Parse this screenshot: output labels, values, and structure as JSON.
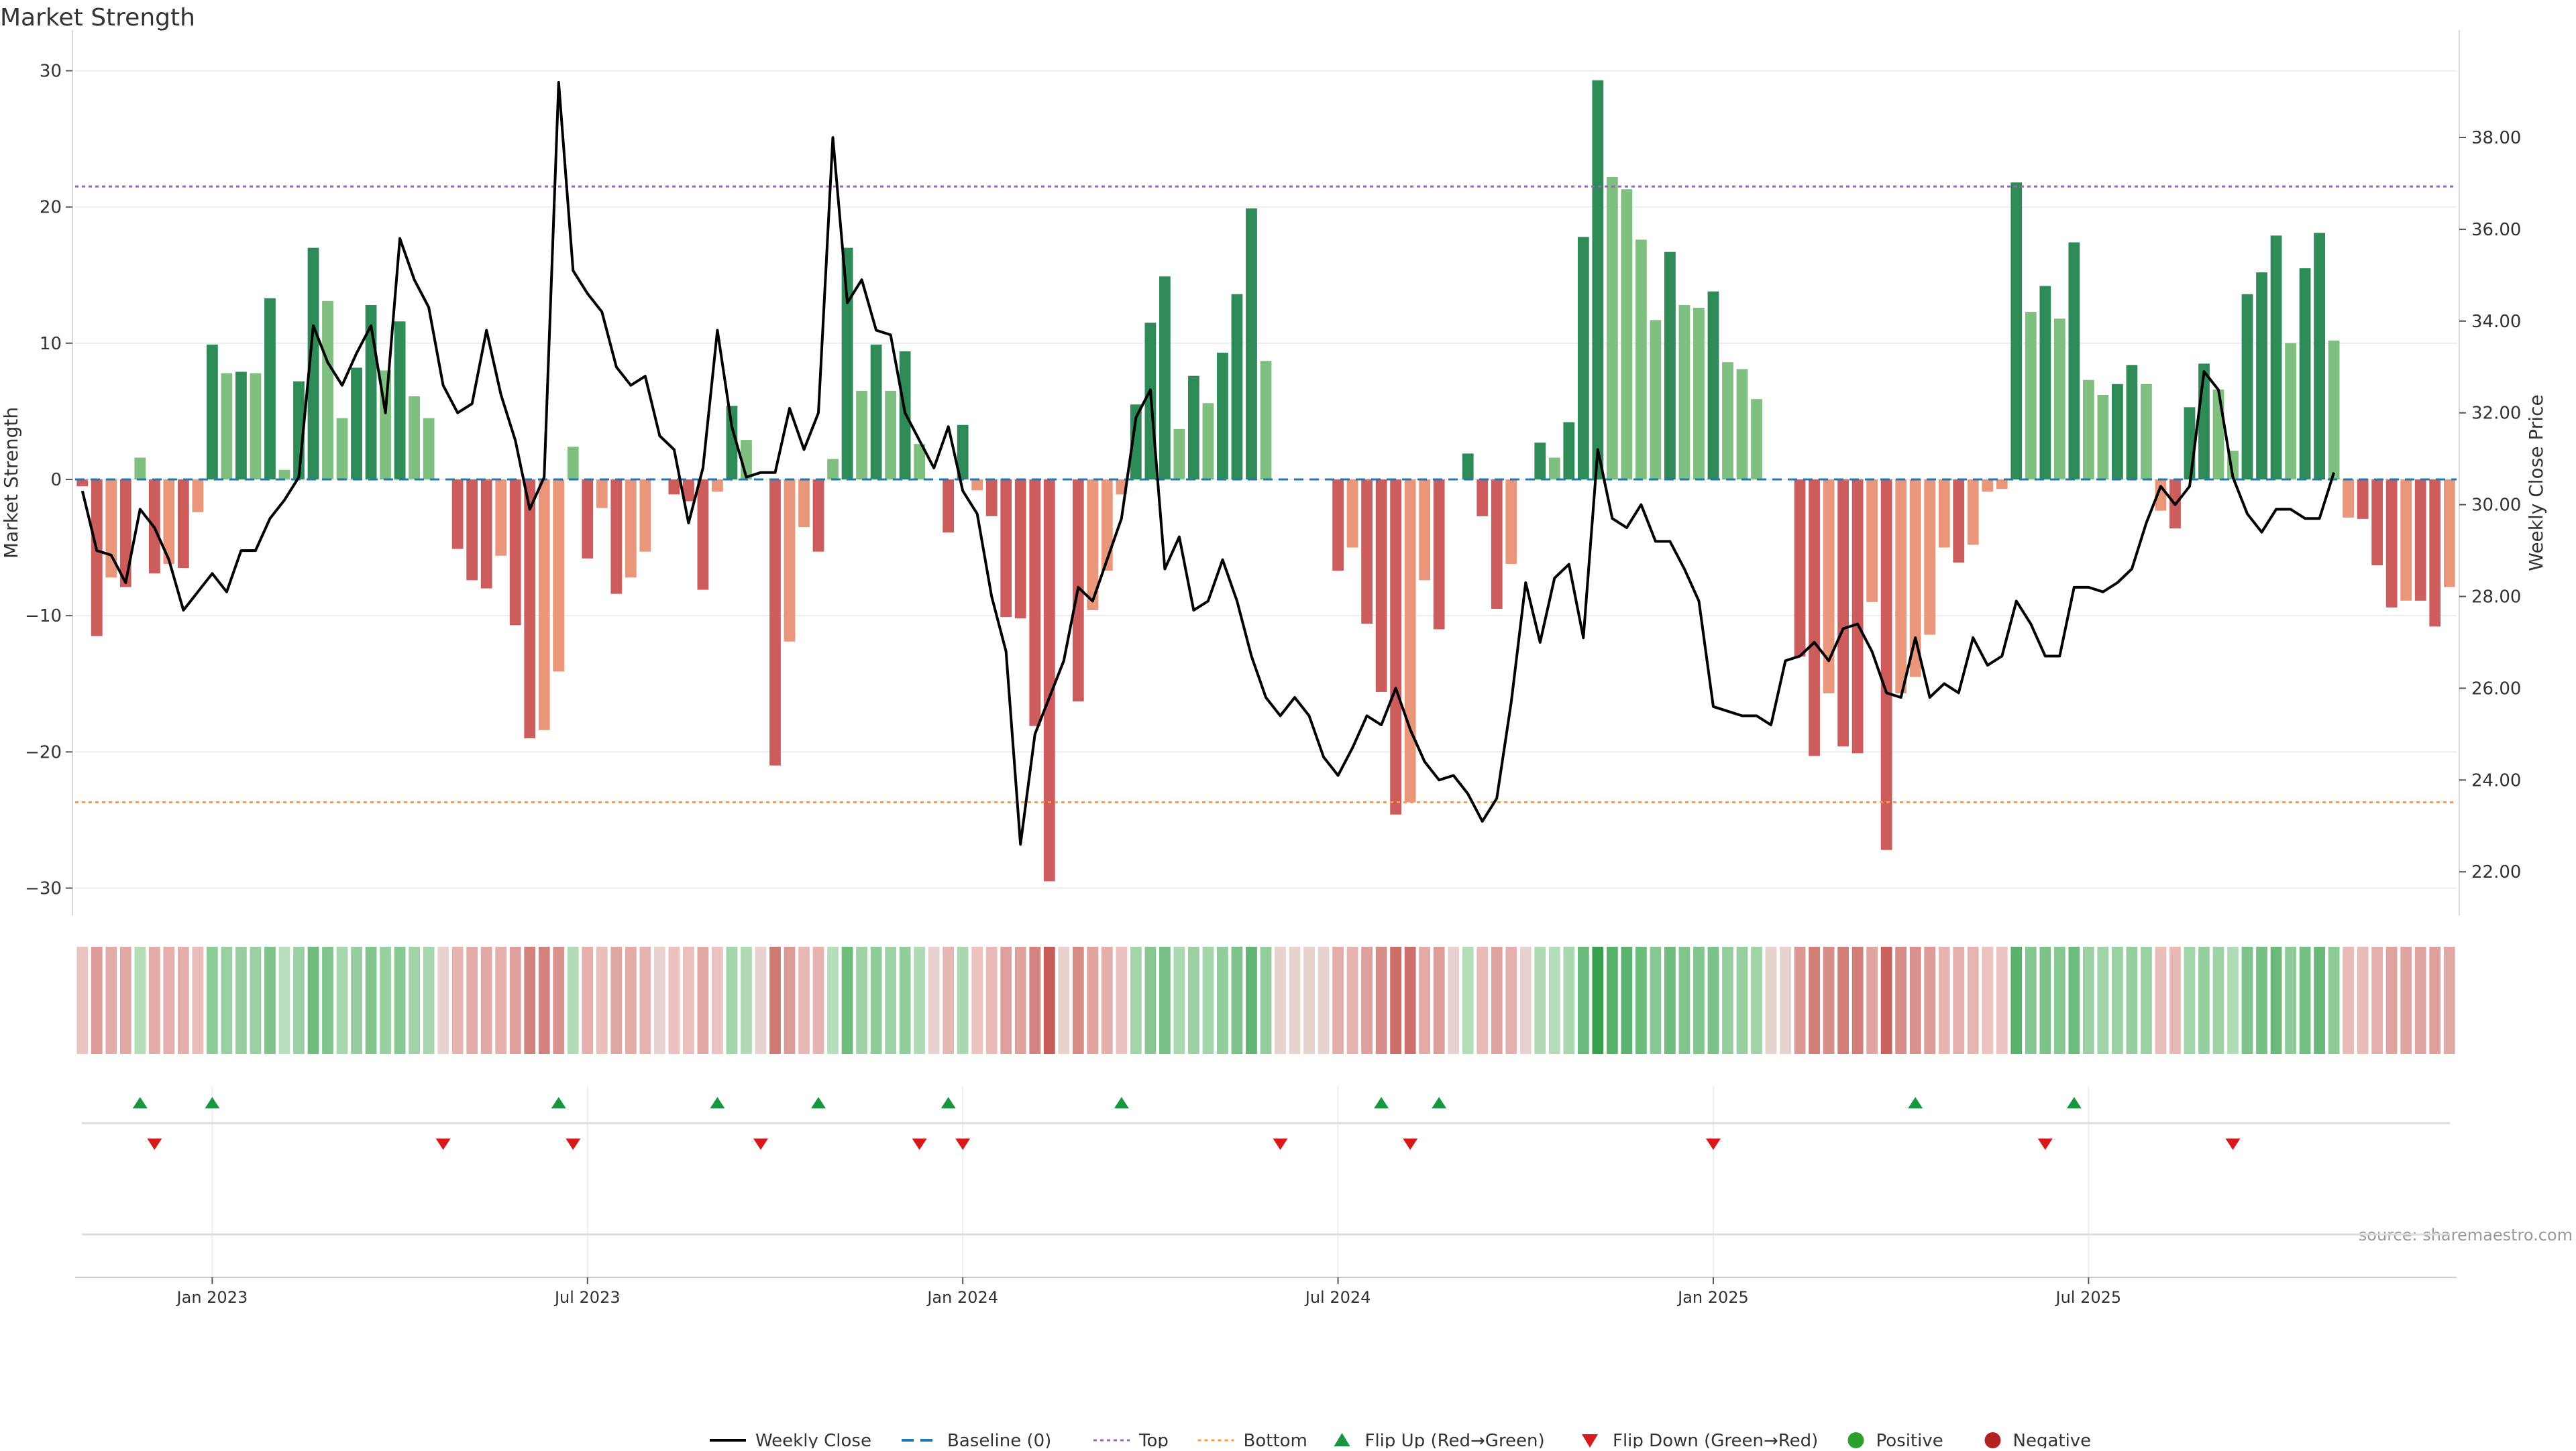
{
  "chart_data": {
    "title": "Market Strength",
    "type": "bar+line",
    "ylabel_left": "Market Strength",
    "ylabel_right": "Weekly Close Price",
    "left_ylim": [
      -31.5,
      31.5
    ],
    "left_ticks": [
      30,
      20,
      10,
      0,
      -10,
      -20,
      -30
    ],
    "left_tick_labels": [
      "30",
      "20",
      "10",
      "0",
      "−10",
      "−20",
      "−30"
    ],
    "right_ylim": [
      21.2,
      39.9
    ],
    "right_ticks": [
      22,
      24,
      26,
      28,
      30,
      32,
      34,
      36,
      38
    ],
    "right_tick_labels": [
      "22.00",
      "24.00",
      "26.00",
      "28.00",
      "30.00",
      "32.00",
      "34.00",
      "36.00",
      "38.00"
    ],
    "start_date": "2022-11-04",
    "x_tick_labels": [
      "Jan 2023",
      "Jul 2023",
      "Jan 2024",
      "Jul 2024",
      "Jan 2025",
      "Jul 2025"
    ],
    "x_tick_weeks": [
      9,
      35,
      61,
      87,
      113,
      139
    ],
    "top_line": 21.5,
    "bottom_line": -23.7,
    "baseline": 0,
    "values": [
      -0.5,
      -11.5,
      -7.2,
      -7.9,
      1.6,
      -6.9,
      -6.2,
      -6.5,
      -2.4,
      9.9,
      7.8,
      7.9,
      7.8,
      13.3,
      0.7,
      7.2,
      17.0,
      13.1,
      4.5,
      8.2,
      12.8,
      8.0,
      11.6,
      6.1,
      4.5,
      0,
      -5.1,
      -7.4,
      -8.0,
      -5.6,
      -10.7,
      -19.0,
      -18.4,
      -14.1,
      2.4,
      -5.8,
      -2.1,
      -8.4,
      -7.2,
      -5.3,
      0,
      -1.1,
      -1.6,
      -8.1,
      -0.9,
      5.4,
      2.9,
      0,
      -21.0,
      -11.9,
      -3.5,
      -5.3,
      1.5,
      17.0,
      6.5,
      9.9,
      6.5,
      9.4,
      2.6,
      0,
      -3.9,
      4.0,
      -0.8,
      -2.7,
      -10.1,
      -10.2,
      -18.1,
      -29.5,
      0,
      -16.3,
      -9.6,
      -6.7,
      -1.1,
      5.5,
      11.5,
      14.9,
      3.7,
      7.6,
      5.6,
      9.3,
      13.6,
      19.9,
      8.7,
      0,
      0,
      0,
      0,
      -6.7,
      -5.0,
      -10.6,
      -15.6,
      -24.6,
      -23.7,
      -7.4,
      -11.0,
      0,
      1.9,
      -2.7,
      -9.5,
      -6.2,
      0,
      2.7,
      1.6,
      4.2,
      17.8,
      29.3,
      22.2,
      21.3,
      17.6,
      11.7,
      16.7,
      12.8,
      12.6,
      13.8,
      8.6,
      8.1,
      5.9,
      0,
      0,
      -13.0,
      -20.3,
      -15.7,
      -19.6,
      -20.1,
      -9.0,
      -27.2,
      -15.7,
      -14.5,
      -11.4,
      -5.0,
      -6.1,
      -4.8,
      -0.9,
      -0.7,
      21.8,
      12.3,
      14.2,
      11.8,
      17.4,
      7.3,
      6.2,
      7.0,
      8.4,
      7.0,
      -2.3,
      -3.6,
      5.3,
      8.5,
      6.6,
      2.1,
      13.6,
      15.2,
      17.9,
      10.0,
      15.5,
      18.1,
      10.2,
      -2.8,
      -2.9,
      -6.3,
      -9.4,
      -8.9,
      -8.9,
      -10.8,
      -7.9
    ],
    "weekly_close": [
      30.3,
      29.0,
      28.9,
      28.3,
      29.9,
      29.5,
      28.8,
      27.7,
      28.1,
      28.5,
      28.1,
      29.0,
      29.0,
      29.7,
      30.1,
      30.6,
      33.9,
      33.1,
      32.6,
      33.3,
      33.9,
      32.0,
      35.8,
      34.9,
      34.3,
      32.6,
      32.0,
      32.2,
      33.8,
      32.4,
      31.4,
      29.9,
      30.6,
      39.2,
      35.1,
      34.6,
      34.2,
      33.0,
      32.6,
      32.8,
      31.5,
      31.2,
      29.6,
      30.8,
      33.8,
      31.7,
      30.6,
      30.7,
      30.7,
      32.1,
      31.2,
      32.0,
      38.0,
      34.4,
      34.9,
      33.8,
      33.7,
      32.0,
      31.4,
      30.8,
      31.7,
      30.3,
      29.8,
      28.0,
      26.8,
      22.6,
      25.0,
      25.8,
      26.6,
      28.2,
      27.9,
      28.8,
      29.7,
      31.9,
      32.5,
      28.6,
      29.3,
      27.7,
      27.9,
      28.8,
      27.9,
      26.7,
      25.8,
      25.4,
      25.8,
      25.4,
      24.5,
      24.1,
      24.7,
      25.4,
      25.2,
      26.0,
      25.1,
      24.4,
      24.0,
      24.1,
      23.7,
      23.1,
      23.6,
      25.7,
      28.3,
      27.0,
      28.4,
      28.7,
      27.1,
      31.2,
      29.7,
      29.5,
      30.0,
      29.2,
      29.2,
      28.6,
      27.9,
      25.6,
      25.5,
      25.4,
      25.4,
      25.2,
      26.6,
      26.7,
      27.0,
      26.6,
      27.3,
      27.4,
      26.8,
      25.9,
      25.8,
      27.1,
      25.8,
      26.1,
      25.9,
      27.1,
      26.5,
      26.7,
      27.9,
      27.4,
      26.7,
      26.7,
      28.2,
      28.2,
      28.1,
      28.3,
      28.6,
      29.6,
      30.4,
      30.0,
      30.4,
      32.9,
      32.5,
      30.6,
      29.8,
      29.4,
      29.9,
      29.9,
      29.7,
      29.7,
      30.7
    ],
    "flip_up_weeks": [
      4,
      9,
      33,
      44,
      51,
      60,
      72,
      90,
      94,
      127,
      138
    ],
    "flip_down_weeks": [
      5,
      25,
      34,
      47,
      58,
      61,
      83,
      92,
      113,
      136,
      149
    ],
    "legend": [
      "Weekly Close",
      "Baseline (0)",
      "Top",
      "Bottom",
      "Flip Up (Red→Green)",
      "Flip Down (Green→Red)",
      "Positive",
      "Negative"
    ],
    "source": "source: sharemaestro.com",
    "colors": {
      "green_dark": "#2e8b57",
      "green_light": "#7fbf7f",
      "red_dark": "#cd5c5c",
      "red_light": "#e9967a",
      "top": "#9467bd",
      "bottom": "#ff9944",
      "baseline": "#1f77b4",
      "price": "#000000",
      "flip_up": "#1a9641",
      "flip_down": "#d7191c",
      "positive": "#2ca02c",
      "negative": "#b22222"
    }
  }
}
